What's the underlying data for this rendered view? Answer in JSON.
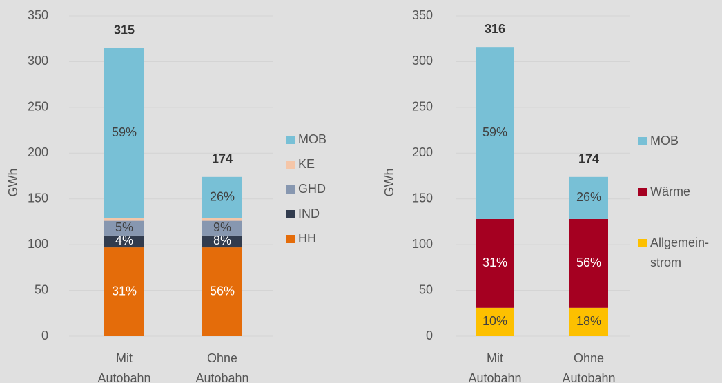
{
  "chart_data": [
    {
      "type": "bar",
      "stacked": true,
      "ylabel": "GWh",
      "categories": [
        "Mit\nAutobahn",
        "Ohne\nAutobahn"
      ],
      "series": [
        {
          "name": "HH",
          "color": "#e46c0a",
          "values": [
            97,
            97
          ],
          "labels": [
            "31%",
            "56%"
          ]
        },
        {
          "name": "IND",
          "color": "#323c4e",
          "values": [
            13,
            13
          ],
          "labels": [
            "4%",
            "8%"
          ]
        },
        {
          "name": "GHD",
          "color": "#8797b0",
          "values": [
            16,
            16
          ],
          "labels": [
            "5%",
            "9%"
          ]
        },
        {
          "name": "KE",
          "color": "#f5c6a8",
          "values": [
            3,
            3
          ],
          "labels": [
            null,
            null
          ]
        },
        {
          "name": "MOB",
          "color": "#78c0d6",
          "values": [
            186,
            45
          ],
          "labels": [
            "59%",
            "26%"
          ]
        }
      ],
      "totals": [
        315,
        174
      ],
      "ylim": [
        0,
        350
      ],
      "yticks": [
        0,
        50,
        100,
        150,
        200,
        250,
        300,
        350
      ],
      "grid": true,
      "legend": "right"
    },
    {
      "type": "bar",
      "stacked": true,
      "ylabel": "GWh",
      "categories": [
        "Mit\nAutobahn",
        "Ohne\nAutobahn"
      ],
      "series": [
        {
          "name": "Allgemein-\nstrom",
          "color": "#fdc000",
          "values": [
            31,
            31
          ],
          "labels": [
            "10%",
            "18%"
          ]
        },
        {
          "name": "Wärme",
          "color": "#a50021",
          "values": [
            97,
            97
          ],
          "labels": [
            "31%",
            "56%"
          ]
        },
        {
          "name": "MOB",
          "color": "#78c0d6",
          "values": [
            188,
            46
          ],
          "labels": [
            "59%",
            "26%"
          ]
        }
      ],
      "totals": [
        316,
        174
      ],
      "ylim": [
        0,
        350
      ],
      "yticks": [
        0,
        50,
        100,
        150,
        200,
        250,
        300,
        350
      ],
      "grid": true,
      "legend": "right"
    }
  ]
}
